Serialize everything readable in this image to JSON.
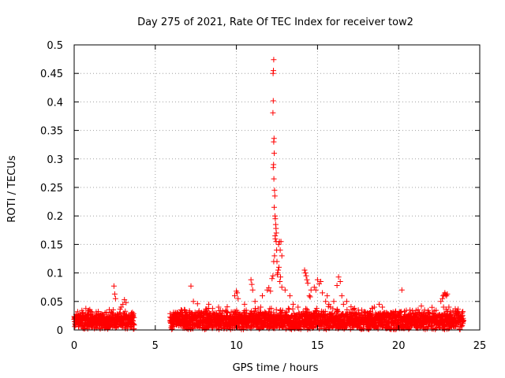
{
  "chart_data": {
    "type": "scatter",
    "title": "Day 275 of 2021, Rate Of TEC Index for receiver tow2",
    "xlabel": "GPS time / hours",
    "ylabel": "ROTI / TECUs",
    "xlim": [
      0,
      25
    ],
    "ylim": [
      0,
      0.5
    ],
    "xticks": [
      0,
      5,
      10,
      15,
      20,
      25
    ],
    "xtick_labels": [
      "0",
      "5",
      "10",
      "15",
      "20",
      "25"
    ],
    "yticks": [
      0,
      0.05,
      0.1,
      0.15,
      0.2,
      0.25,
      0.3,
      0.35,
      0.4,
      0.45,
      0.5
    ],
    "ytick_labels": [
      "0",
      "0.05",
      "0.1",
      "0.15",
      "0.2",
      "0.25",
      "0.3",
      "0.35",
      "0.4",
      "0.45",
      "0.5"
    ],
    "grid": true,
    "marker": "+",
    "color": "#ff0000",
    "segments": [
      {
        "start": 0.0,
        "end": 3.7,
        "base": 0.012,
        "spread": 0.018,
        "step": 0.022
      },
      {
        "start": 5.9,
        "end": 24.0,
        "base": 0.012,
        "spread": 0.02,
        "step": 0.022
      }
    ],
    "points": [
      [
        2.45,
        0.077
      ],
      [
        2.5,
        0.063
      ],
      [
        2.55,
        0.055
      ],
      [
        3.0,
        0.045
      ],
      [
        3.1,
        0.053
      ],
      [
        3.2,
        0.048
      ],
      [
        2.9,
        0.04
      ],
      [
        7.2,
        0.077
      ],
      [
        7.35,
        0.05
      ],
      [
        7.6,
        0.046
      ],
      [
        8.3,
        0.045
      ],
      [
        8.9,
        0.04
      ],
      [
        9.4,
        0.03
      ],
      [
        9.9,
        0.06
      ],
      [
        10.0,
        0.068
      ],
      [
        10.05,
        0.065
      ],
      [
        10.1,
        0.055
      ],
      [
        10.5,
        0.045
      ],
      [
        10.9,
        0.088
      ],
      [
        10.95,
        0.08
      ],
      [
        11.0,
        0.07
      ],
      [
        11.15,
        0.05
      ],
      [
        11.5,
        0.04
      ],
      [
        11.6,
        0.06
      ],
      [
        11.9,
        0.07
      ],
      [
        12.0,
        0.074
      ],
      [
        12.1,
        0.068
      ],
      [
        12.2,
        0.09
      ],
      [
        12.25,
        0.095
      ],
      [
        12.3,
        0.12
      ],
      [
        12.35,
        0.13
      ],
      [
        12.4,
        0.16
      ],
      [
        12.45,
        0.155
      ],
      [
        12.48,
        0.14
      ],
      [
        12.5,
        0.12
      ],
      [
        12.52,
        0.097
      ],
      [
        12.55,
        0.1
      ],
      [
        12.3,
        0.474
      ],
      [
        12.28,
        0.455
      ],
      [
        12.26,
        0.45
      ],
      [
        12.27,
        0.402
      ],
      [
        12.25,
        0.381
      ],
      [
        12.32,
        0.336
      ],
      [
        12.3,
        0.33
      ],
      [
        12.33,
        0.31
      ],
      [
        12.29,
        0.29
      ],
      [
        12.27,
        0.285
      ],
      [
        12.31,
        0.265
      ],
      [
        12.35,
        0.245
      ],
      [
        12.37,
        0.235
      ],
      [
        12.33,
        0.215
      ],
      [
        12.38,
        0.2
      ],
      [
        12.4,
        0.195
      ],
      [
        12.42,
        0.185
      ],
      [
        12.44,
        0.178
      ],
      [
        12.46,
        0.17
      ],
      [
        12.39,
        0.165
      ],
      [
        12.6,
        0.15
      ],
      [
        12.65,
        0.155
      ],
      [
        12.7,
        0.14
      ],
      [
        12.75,
        0.155
      ],
      [
        12.8,
        0.13
      ],
      [
        12.58,
        0.105
      ],
      [
        12.62,
        0.11
      ],
      [
        12.68,
        0.085
      ],
      [
        12.72,
        0.093
      ],
      [
        12.8,
        0.075
      ],
      [
        13.0,
        0.07
      ],
      [
        13.3,
        0.06
      ],
      [
        13.5,
        0.045
      ],
      [
        13.8,
        0.04
      ],
      [
        14.2,
        0.105
      ],
      [
        14.25,
        0.1
      ],
      [
        14.3,
        0.095
      ],
      [
        14.35,
        0.088
      ],
      [
        14.4,
        0.082
      ],
      [
        14.5,
        0.06
      ],
      [
        14.55,
        0.058
      ],
      [
        14.6,
        0.07
      ],
      [
        14.8,
        0.075
      ],
      [
        14.9,
        0.07
      ],
      [
        15.0,
        0.088
      ],
      [
        15.1,
        0.081
      ],
      [
        15.2,
        0.085
      ],
      [
        15.3,
        0.065
      ],
      [
        15.5,
        0.05
      ],
      [
        15.6,
        0.06
      ],
      [
        15.7,
        0.045
      ],
      [
        15.8,
        0.04
      ],
      [
        16.0,
        0.05
      ],
      [
        16.2,
        0.078
      ],
      [
        16.3,
        0.093
      ],
      [
        16.4,
        0.085
      ],
      [
        16.5,
        0.06
      ],
      [
        16.6,
        0.045
      ],
      [
        16.8,
        0.05
      ],
      [
        17.2,
        0.035
      ],
      [
        18.2,
        0.03
      ],
      [
        18.5,
        0.04
      ],
      [
        18.8,
        0.045
      ],
      [
        19.0,
        0.04
      ],
      [
        19.5,
        0.03
      ],
      [
        20.2,
        0.07
      ],
      [
        20.7,
        0.035
      ],
      [
        21.4,
        0.042
      ],
      [
        21.6,
        0.035
      ],
      [
        22.1,
        0.03
      ],
      [
        22.7,
        0.055
      ],
      [
        22.75,
        0.06
      ],
      [
        22.8,
        0.062
      ],
      [
        22.85,
        0.065
      ],
      [
        22.9,
        0.062
      ],
      [
        22.95,
        0.06
      ],
      [
        23.0,
        0.063
      ],
      [
        22.6,
        0.05
      ],
      [
        23.1,
        0.04
      ],
      [
        23.5,
        0.03
      ]
    ]
  }
}
